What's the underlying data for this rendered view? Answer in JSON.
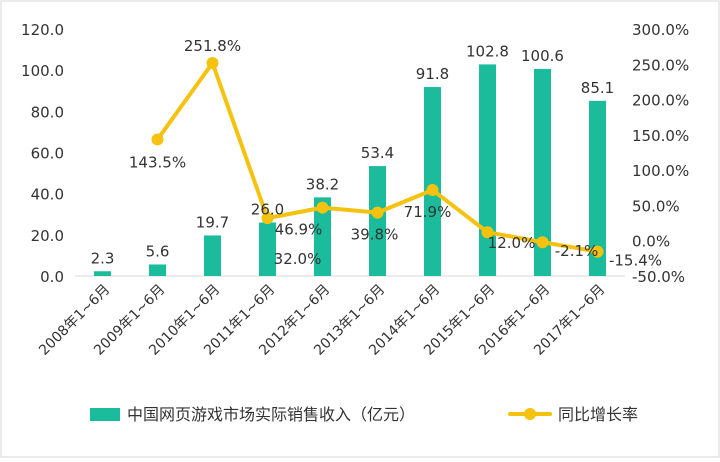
{
  "chart_data": {
    "type": "bar",
    "categories": [
      "2008年1~6月",
      "2009年1~6月",
      "2010年1~6月",
      "2011年1~6月",
      "2012年1~6月",
      "2013年1~6月",
      "2014年1~6月",
      "2015年1~6月",
      "2016年1~6月",
      "2017年1~6月"
    ],
    "series": [
      {
        "name": "中国网页游戏市场实际销售收入（亿元）",
        "type": "bar",
        "axis": "left",
        "color": "#1ABC9C",
        "values": [
          2.3,
          5.6,
          19.7,
          26.0,
          38.2,
          53.4,
          91.8,
          102.8,
          100.6,
          85.1
        ],
        "labels": [
          "2.3",
          "5.6",
          "19.7",
          "26.0",
          "38.2",
          "53.4",
          "91.8",
          "102.8",
          "100.6",
          "85.1"
        ]
      },
      {
        "name": "同比增长率",
        "type": "line",
        "axis": "right",
        "color": "#F5C20F",
        "values": [
          null,
          143.5,
          251.8,
          32.0,
          46.9,
          39.8,
          71.9,
          12.0,
          -2.1,
          -15.4
        ],
        "labels": [
          "",
          "143.5%",
          "251.8%",
          "32.0%",
          "46.9%",
          "39.8%",
          "71.9%",
          "12.0%",
          "-2.1%",
          "-15.4%"
        ]
      }
    ],
    "y_left": {
      "ylim": [
        0,
        120
      ],
      "ticks": [
        "0.0",
        "20.0",
        "40.0",
        "60.0",
        "80.0",
        "100.0",
        "120.0"
      ]
    },
    "y_right": {
      "ylim": [
        -50,
        300
      ],
      "ticks": [
        "-50.0%",
        "0.0%",
        "50.0%",
        "100.0%",
        "150.0%",
        "200.0%",
        "250.0%",
        "300.0%"
      ]
    },
    "grid": false,
    "legend_position": "bottom"
  }
}
